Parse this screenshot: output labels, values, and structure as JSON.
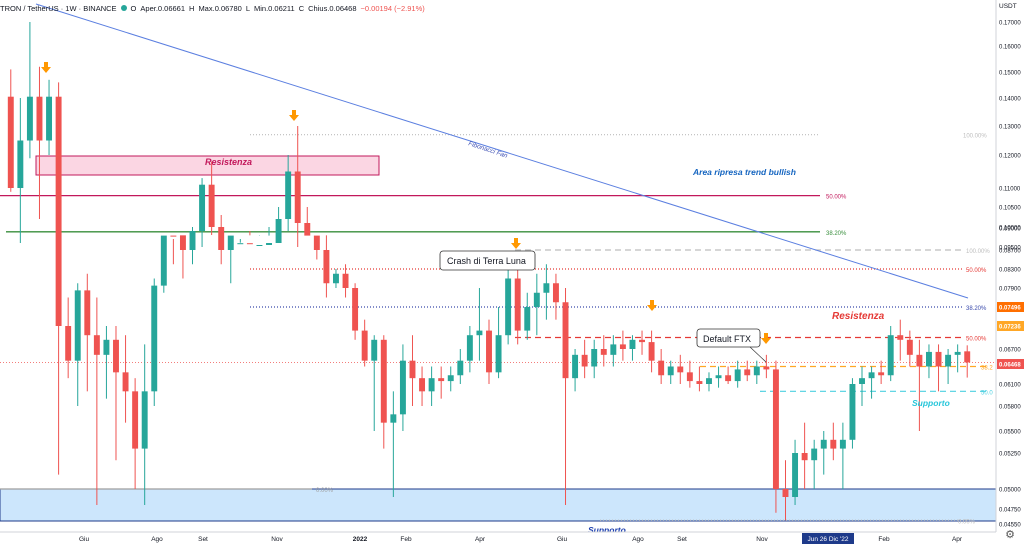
{
  "header": {
    "symbol": "TRON / TetherUS · 1W · BINANCE",
    "open_label": "O",
    "open_value": "Aper.0.06661",
    "high_label": "H",
    "high_value": "Max.0.06780",
    "low_label": "L",
    "low_value": "Min.0.06211",
    "close_label": "C",
    "close_value": "Chius.0.06468",
    "change": "−0.00194 (−2.91%)"
  },
  "colors": {
    "up": "#26a69a",
    "down": "#ef5350",
    "resistance_zone": "#f8bbd0",
    "support_zone": "#bbdefb",
    "fib_fan": "#5b7fe0",
    "arrow": "#ff9800"
  },
  "chart_data": {
    "type": "candlestick",
    "x_tick_labels": [
      "Giu",
      "Ago",
      "Set",
      "Nov",
      "2022",
      "Feb",
      "Apr",
      "Giu",
      "Ago",
      "Set",
      "Nov",
      "Jun 26 Dic '22",
      "Feb",
      "Apr"
    ],
    "y_axis_label": "USDT",
    "y_tick_labels": [
      "0.17000",
      "0.16000",
      "0.15000",
      "0.14000",
      "0.13000",
      "0.12000",
      "0.11000",
      "0.10500",
      "0.10000",
      "0.09500",
      "0.09000",
      "0.08700",
      "0.08300",
      "0.07900",
      "0.07496",
      "0.07236",
      "0.06700",
      "0.06468",
      "0.06100",
      "0.05800",
      "0.05500",
      "0.05250",
      "0.05000",
      "0.04750",
      "0.04550"
    ],
    "current_price": "0.06468",
    "price_tags": [
      "0.07496",
      "0.07236",
      "0.06468"
    ],
    "candles": [
      {
        "o": 0.1405,
        "h": 0.151,
        "l": 0.109,
        "c": 0.11
      },
      {
        "o": 0.11,
        "h": 0.14,
        "l": 0.096,
        "c": 0.125
      },
      {
        "o": 0.125,
        "h": 0.172,
        "l": 0.119,
        "c": 0.1405
      },
      {
        "o": 0.1405,
        "h": 0.152,
        "l": 0.102,
        "c": 0.125
      },
      {
        "o": 0.125,
        "h": 0.147,
        "l": 0.12,
        "c": 0.1405
      },
      {
        "o": 0.1405,
        "h": 0.146,
        "l": 0.051,
        "c": 0.072
      },
      {
        "o": 0.072,
        "h": 0.077,
        "l": 0.062,
        "c": 0.065
      },
      {
        "o": 0.065,
        "h": 0.08,
        "l": 0.058,
        "c": 0.0785
      },
      {
        "o": 0.0785,
        "h": 0.082,
        "l": 0.06,
        "c": 0.07
      },
      {
        "o": 0.07,
        "h": 0.077,
        "l": 0.048,
        "c": 0.066
      },
      {
        "o": 0.066,
        "h": 0.072,
        "l": 0.059,
        "c": 0.069
      },
      {
        "o": 0.069,
        "h": 0.072,
        "l": 0.052,
        "c": 0.063
      },
      {
        "o": 0.063,
        "h": 0.07,
        "l": 0.056,
        "c": 0.06
      },
      {
        "o": 0.06,
        "h": 0.062,
        "l": 0.05,
        "c": 0.053
      },
      {
        "o": 0.053,
        "h": 0.068,
        "l": 0.048,
        "c": 0.06
      },
      {
        "o": 0.06,
        "h": 0.081,
        "l": 0.058,
        "c": 0.0795
      },
      {
        "o": 0.0795,
        "h": 0.095,
        "l": 0.078,
        "c": 0.092
      },
      {
        "o": 0.092,
        "h": 0.097,
        "l": 0.084,
        "c": 0.089
      },
      {
        "o": 0.089,
        "h": 0.095,
        "l": 0.081,
        "c": 0.087
      },
      {
        "o": 0.087,
        "h": 0.1,
        "l": 0.084,
        "c": 0.099
      },
      {
        "o": 0.099,
        "h": 0.113,
        "l": 0.095,
        "c": 0.111
      },
      {
        "o": 0.111,
        "h": 0.118,
        "l": 0.098,
        "c": 0.1
      },
      {
        "o": 0.1,
        "h": 0.103,
        "l": 0.084,
        "c": 0.087
      },
      {
        "o": 0.087,
        "h": 0.093,
        "l": 0.08,
        "c": 0.092
      },
      {
        "o": 0.092,
        "h": 0.097,
        "l": 0.088,
        "c": 0.094
      },
      {
        "o": 0.094,
        "h": 0.099,
        "l": 0.089,
        "c": 0.093
      },
      {
        "o": 0.093,
        "h": 0.098,
        "l": 0.089,
        "c": 0.0955
      },
      {
        "o": 0.0955,
        "h": 0.1,
        "l": 0.092,
        "c": 0.096
      },
      {
        "o": 0.096,
        "h": 0.105,
        "l": 0.093,
        "c": 0.102
      },
      {
        "o": 0.102,
        "h": 0.12,
        "l": 0.099,
        "c": 0.115
      },
      {
        "o": 0.115,
        "h": 0.13,
        "l": 0.095,
        "c": 0.101
      },
      {
        "o": 0.101,
        "h": 0.105,
        "l": 0.09,
        "c": 0.092
      },
      {
        "o": 0.092,
        "h": 0.095,
        "l": 0.085,
        "c": 0.087
      },
      {
        "o": 0.087,
        "h": 0.089,
        "l": 0.077,
        "c": 0.08
      },
      {
        "o": 0.08,
        "h": 0.083,
        "l": 0.079,
        "c": 0.082
      },
      {
        "o": 0.082,
        "h": 0.084,
        "l": 0.077,
        "c": 0.079
      },
      {
        "o": 0.079,
        "h": 0.08,
        "l": 0.069,
        "c": 0.071
      },
      {
        "o": 0.071,
        "h": 0.073,
        "l": 0.064,
        "c": 0.065
      },
      {
        "o": 0.065,
        "h": 0.07,
        "l": 0.055,
        "c": 0.069
      },
      {
        "o": 0.069,
        "h": 0.07,
        "l": 0.053,
        "c": 0.056
      },
      {
        "o": 0.056,
        "h": 0.06,
        "l": 0.049,
        "c": 0.057
      },
      {
        "o": 0.057,
        "h": 0.068,
        "l": 0.055,
        "c": 0.065
      },
      {
        "o": 0.065,
        "h": 0.07,
        "l": 0.058,
        "c": 0.062
      },
      {
        "o": 0.062,
        "h": 0.064,
        "l": 0.058,
        "c": 0.06
      },
      {
        "o": 0.06,
        "h": 0.064,
        "l": 0.058,
        "c": 0.062
      },
      {
        "o": 0.062,
        "h": 0.064,
        "l": 0.059,
        "c": 0.0615
      },
      {
        "o": 0.0615,
        "h": 0.064,
        "l": 0.06,
        "c": 0.0625
      },
      {
        "o": 0.0625,
        "h": 0.067,
        "l": 0.061,
        "c": 0.065
      },
      {
        "o": 0.065,
        "h": 0.072,
        "l": 0.063,
        "c": 0.07
      },
      {
        "o": 0.07,
        "h": 0.079,
        "l": 0.065,
        "c": 0.071
      },
      {
        "o": 0.071,
        "h": 0.073,
        "l": 0.061,
        "c": 0.063
      },
      {
        "o": 0.063,
        "h": 0.075,
        "l": 0.062,
        "c": 0.07
      },
      {
        "o": 0.07,
        "h": 0.083,
        "l": 0.068,
        "c": 0.081
      },
      {
        "o": 0.081,
        "h": 0.083,
        "l": 0.068,
        "c": 0.071
      },
      {
        "o": 0.071,
        "h": 0.078,
        "l": 0.069,
        "c": 0.075
      },
      {
        "o": 0.075,
        "h": 0.082,
        "l": 0.07,
        "c": 0.078
      },
      {
        "o": 0.078,
        "h": 0.084,
        "l": 0.073,
        "c": 0.08
      },
      {
        "o": 0.08,
        "h": 0.082,
        "l": 0.073,
        "c": 0.076
      },
      {
        "o": 0.076,
        "h": 0.079,
        "l": 0.048,
        "c": 0.062
      },
      {
        "o": 0.062,
        "h": 0.067,
        "l": 0.06,
        "c": 0.066
      },
      {
        "o": 0.066,
        "h": 0.069,
        "l": 0.062,
        "c": 0.064
      },
      {
        "o": 0.064,
        "h": 0.069,
        "l": 0.062,
        "c": 0.067
      },
      {
        "o": 0.067,
        "h": 0.07,
        "l": 0.064,
        "c": 0.066
      },
      {
        "o": 0.066,
        "h": 0.07,
        "l": 0.064,
        "c": 0.068
      },
      {
        "o": 0.068,
        "h": 0.071,
        "l": 0.065,
        "c": 0.067
      },
      {
        "o": 0.067,
        "h": 0.07,
        "l": 0.065,
        "c": 0.069
      },
      {
        "o": 0.069,
        "h": 0.071,
        "l": 0.066,
        "c": 0.0685
      },
      {
        "o": 0.0685,
        "h": 0.071,
        "l": 0.063,
        "c": 0.065
      },
      {
        "o": 0.065,
        "h": 0.067,
        "l": 0.061,
        "c": 0.0625
      },
      {
        "o": 0.0625,
        "h": 0.065,
        "l": 0.061,
        "c": 0.064
      },
      {
        "o": 0.064,
        "h": 0.066,
        "l": 0.061,
        "c": 0.063
      },
      {
        "o": 0.063,
        "h": 0.065,
        "l": 0.0605,
        "c": 0.0615
      },
      {
        "o": 0.0615,
        "h": 0.064,
        "l": 0.06,
        "c": 0.061
      },
      {
        "o": 0.061,
        "h": 0.063,
        "l": 0.06,
        "c": 0.062
      },
      {
        "o": 0.062,
        "h": 0.064,
        "l": 0.0605,
        "c": 0.0625
      },
      {
        "o": 0.0625,
        "h": 0.064,
        "l": 0.061,
        "c": 0.0615
      },
      {
        "o": 0.0615,
        "h": 0.065,
        "l": 0.0605,
        "c": 0.0635
      },
      {
        "o": 0.0635,
        "h": 0.065,
        "l": 0.0615,
        "c": 0.0625
      },
      {
        "o": 0.0625,
        "h": 0.065,
        "l": 0.061,
        "c": 0.064
      },
      {
        "o": 0.064,
        "h": 0.066,
        "l": 0.062,
        "c": 0.0635
      },
      {
        "o": 0.0635,
        "h": 0.065,
        "l": 0.047,
        "c": 0.05
      },
      {
        "o": 0.05,
        "h": 0.052,
        "l": 0.046,
        "c": 0.049
      },
      {
        "o": 0.049,
        "h": 0.054,
        "l": 0.048,
        "c": 0.0525
      },
      {
        "o": 0.0525,
        "h": 0.056,
        "l": 0.05,
        "c": 0.052
      },
      {
        "o": 0.052,
        "h": 0.054,
        "l": 0.05,
        "c": 0.053
      },
      {
        "o": 0.053,
        "h": 0.055,
        "l": 0.051,
        "c": 0.054
      },
      {
        "o": 0.054,
        "h": 0.056,
        "l": 0.052,
        "c": 0.053
      },
      {
        "o": 0.053,
        "h": 0.056,
        "l": 0.05,
        "c": 0.054
      },
      {
        "o": 0.054,
        "h": 0.062,
        "l": 0.053,
        "c": 0.061
      },
      {
        "o": 0.061,
        "h": 0.064,
        "l": 0.058,
        "c": 0.062
      },
      {
        "o": 0.062,
        "h": 0.064,
        "l": 0.059,
        "c": 0.063
      },
      {
        "o": 0.063,
        "h": 0.065,
        "l": 0.061,
        "c": 0.0625
      },
      {
        "o": 0.0625,
        "h": 0.072,
        "l": 0.0615,
        "c": 0.07
      },
      {
        "o": 0.07,
        "h": 0.073,
        "l": 0.065,
        "c": 0.069
      },
      {
        "o": 0.069,
        "h": 0.071,
        "l": 0.064,
        "c": 0.066
      },
      {
        "o": 0.066,
        "h": 0.069,
        "l": 0.055,
        "c": 0.064
      },
      {
        "o": 0.064,
        "h": 0.068,
        "l": 0.062,
        "c": 0.0665
      },
      {
        "o": 0.0665,
        "h": 0.068,
        "l": 0.06,
        "c": 0.064
      },
      {
        "o": 0.064,
        "h": 0.067,
        "l": 0.061,
        "c": 0.066
      },
      {
        "o": 0.066,
        "h": 0.068,
        "l": 0.063,
        "c": 0.0665
      },
      {
        "o": 0.0666,
        "h": 0.0678,
        "l": 0.0621,
        "c": 0.0647
      }
    ],
    "horizontal_levels": [
      {
        "label": "50.00%",
        "value": 0.108,
        "color": "#c2185b",
        "style": "solid"
      },
      {
        "label": "38.20%",
        "value": 0.091,
        "color": "#388e3c",
        "style": "solid"
      },
      {
        "label": "100.00%",
        "value": 0.127,
        "color": "#bdbdbd",
        "style": "dotted"
      },
      {
        "label": "100.00%",
        "value": 0.087,
        "color": "#bdbdbd",
        "style": "dashed"
      },
      {
        "label": "50.00%",
        "value": 0.083,
        "color": "#e53935",
        "style": "dotted"
      },
      {
        "label": "38.20%",
        "value": 0.075,
        "color": "#3949ab",
        "style": "dotted"
      },
      {
        "label": "50.00%",
        "value": 0.0695,
        "color": "#e53935",
        "style": "dashed"
      },
      {
        "label": "38.2",
        "value": 0.064,
        "color": "#ffa726",
        "style": "dashed"
      },
      {
        "label": "50.0",
        "value": 0.06,
        "color": "#4dd0e1",
        "style": "dashed"
      },
      {
        "label": "0.00%",
        "value": 0.05,
        "color": "#9e9e9e",
        "style": "solid"
      },
      {
        "label": "0.00%",
        "value": 0.046,
        "color": "#bdbdbd",
        "style": "dotted"
      }
    ],
    "annotations": {
      "resistenza_1": "Resistenza",
      "area_ripresa": "Area ripresa trend bullish",
      "fibonacci_fan": "Fibonacci Fan",
      "crash_terra_luna": "Crash di Terra Luna",
      "default_ftx": "Default FTX",
      "resistenza_2": "Resistenza",
      "supporto_1": "Supporto",
      "supporto_2": "Supporto"
    }
  }
}
